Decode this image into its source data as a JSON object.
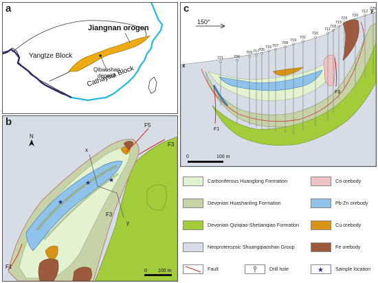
{
  "panel_a": {
    "letter": "a",
    "orogen_label": "Jiangnan orogen",
    "yangtze_label": "Yangtze Block",
    "cathaysia_label": "Cathaysia Block",
    "deposit_label_1": "Qibaoshan",
    "deposit_label_2": "deposit"
  },
  "panel_b": {
    "letter": "b",
    "north_label": "N",
    "labels": {
      "f5": "F5",
      "f3_top": "F3",
      "f3_mid": "F3",
      "f1": "F1",
      "x": "x",
      "y": "y"
    },
    "scale": {
      "zero": "0",
      "end": "100 m"
    }
  },
  "panel_c": {
    "letter": "c",
    "azimuth": "150°",
    "x_label": "x",
    "y_label": "y",
    "f1_label": "F1",
    "f3_label": "F3",
    "scale": {
      "zero": "0",
      "end": "100 m"
    },
    "drill_holes": [
      "721",
      "706",
      "709",
      "717",
      "705",
      "716",
      "707",
      "708",
      "719",
      "701",
      "710",
      "711",
      "718",
      "715",
      "723",
      "720",
      "712",
      "725"
    ]
  },
  "legend": {
    "items": [
      {
        "label": "Carboniferous Huanglong Formation",
        "color": "#e3f2d0"
      },
      {
        "label": "Devonian Huashanling Formation",
        "color": "#c7d3a6"
      },
      {
        "label": "Devonian Qiziqiao-Shetianqiao Formation",
        "color": "#a2cc3a"
      },
      {
        "label": "Neoproterozoic Shuangqiaoshan Group",
        "color": "#d6dde6"
      },
      {
        "label": "Co orebody",
        "color": "#eec3c6"
      },
      {
        "label": "Pb-Zn orebody",
        "color": "#8fc3ec"
      },
      {
        "label": "Cu orebody",
        "color": "#d99315"
      },
      {
        "label": "Fe orebody",
        "color": "#9e5a3c"
      },
      {
        "label": "Fault"
      },
      {
        "label": "Drill hole"
      },
      {
        "label": "Sample location"
      }
    ]
  }
}
